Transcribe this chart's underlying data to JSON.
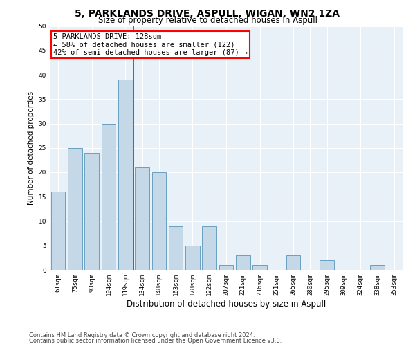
{
  "title": "5, PARKLANDS DRIVE, ASPULL, WIGAN, WN2 1ZA",
  "subtitle": "Size of property relative to detached houses in Aspull",
  "xlabel": "Distribution of detached houses by size in Aspull",
  "ylabel": "Number of detached properties",
  "categories": [
    "61sqm",
    "75sqm",
    "90sqm",
    "104sqm",
    "119sqm",
    "134sqm",
    "148sqm",
    "163sqm",
    "178sqm",
    "192sqm",
    "207sqm",
    "221sqm",
    "236sqm",
    "251sqm",
    "265sqm",
    "280sqm",
    "295sqm",
    "309sqm",
    "324sqm",
    "338sqm",
    "353sqm"
  ],
  "values": [
    16,
    25,
    24,
    30,
    39,
    21,
    20,
    9,
    5,
    9,
    1,
    3,
    1,
    0,
    3,
    0,
    2,
    0,
    0,
    1,
    0
  ],
  "bar_color": "#c5d8e8",
  "bar_edge_color": "#6a9fc0",
  "vline_x": 4.5,
  "annotation_line1": "5 PARKLANDS DRIVE: 128sqm",
  "annotation_line2": "← 58% of detached houses are smaller (122)",
  "annotation_line3": "42% of semi-detached houses are larger (87) →",
  "annotation_box_color": "white",
  "annotation_box_edge_color": "red",
  "ylim": [
    0,
    50
  ],
  "yticks": [
    0,
    5,
    10,
    15,
    20,
    25,
    30,
    35,
    40,
    45,
    50
  ],
  "plot_background": "#e8f0f8",
  "grid_color": "white",
  "footer_line1": "Contains HM Land Registry data © Crown copyright and database right 2024.",
  "footer_line2": "Contains public sector information licensed under the Open Government Licence v3.0.",
  "title_fontsize": 10,
  "subtitle_fontsize": 8.5,
  "xlabel_fontsize": 8.5,
  "ylabel_fontsize": 7.5,
  "tick_fontsize": 6.5,
  "footer_fontsize": 6,
  "annotation_fontsize": 7.5
}
